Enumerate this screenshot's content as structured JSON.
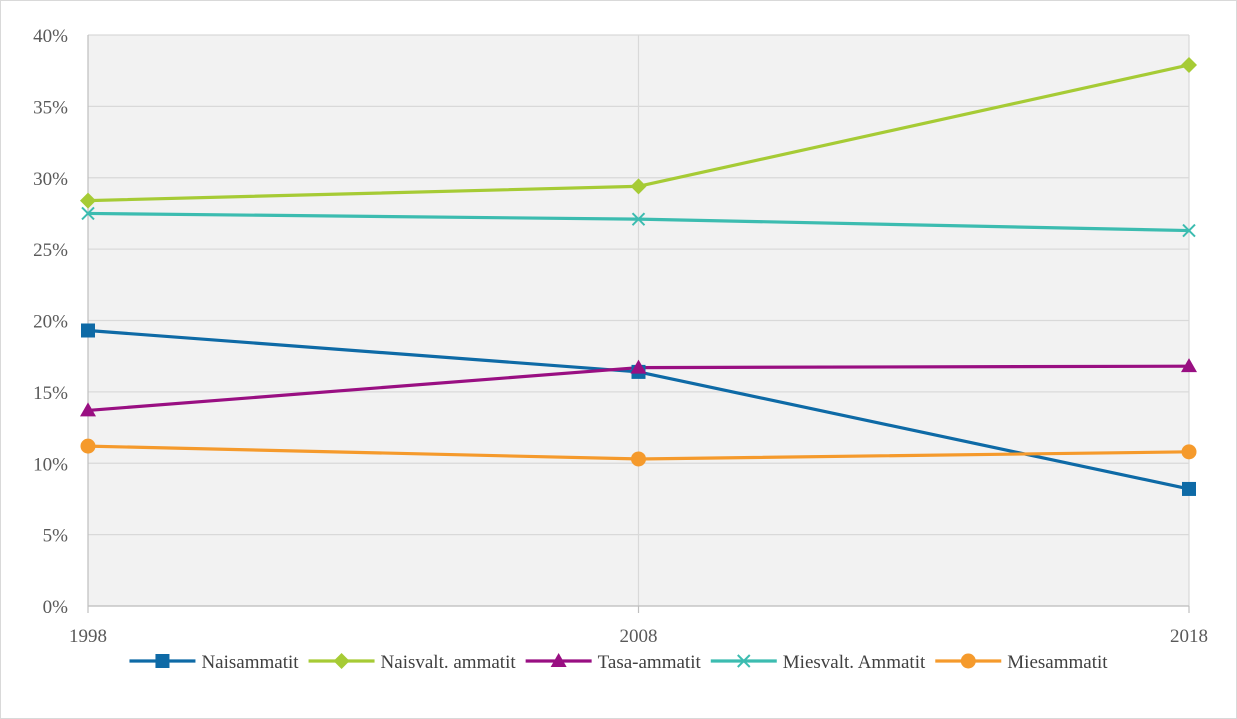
{
  "chart_data": {
    "type": "line",
    "title": "",
    "xlabel": "",
    "ylabel": "",
    "x": [
      "1998",
      "2008",
      "2018"
    ],
    "ylim": [
      0,
      40
    ],
    "yticks": [
      "0%",
      "5%",
      "10%",
      "15%",
      "20%",
      "25%",
      "30%",
      "35%",
      "40%"
    ],
    "grid": true,
    "legend_position": "bottom",
    "plot_background": "#f2f2f2",
    "series": [
      {
        "name": "Naisammatit",
        "values": [
          19.3,
          16.4,
          8.2
        ],
        "color": "#0e6aa6",
        "marker": "square"
      },
      {
        "name": "Naisvalt. ammatit",
        "values": [
          28.4,
          29.4,
          37.9
        ],
        "color": "#a6cb35",
        "marker": "diamond"
      },
      {
        "name": "Tasa-ammatit",
        "values": [
          13.7,
          16.7,
          16.8
        ],
        "color": "#990f82",
        "marker": "triangle"
      },
      {
        "name": "Miesvalt. Ammatit",
        "values": [
          27.5,
          27.1,
          26.3
        ],
        "color": "#3cbcb0",
        "marker": "x"
      },
      {
        "name": "Miesammatit",
        "values": [
          11.2,
          10.3,
          10.8
        ],
        "color": "#f59a2c",
        "marker": "circle"
      }
    ]
  }
}
